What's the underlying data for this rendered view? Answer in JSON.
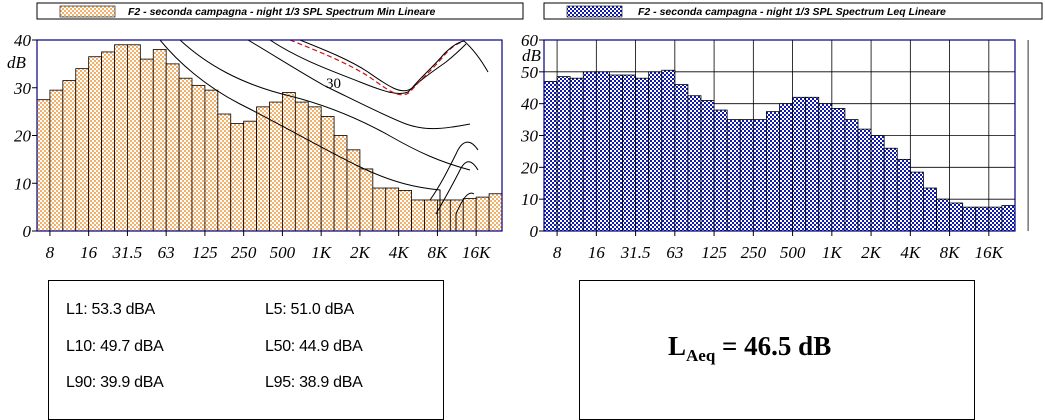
{
  "colors": {
    "left_bar_fill": "#f2b06a",
    "left_bar_pattern": "#ffffff",
    "right_bar_fill": "#0f1ab0",
    "right_bar_pattern": "#ffffff",
    "frame": "#000080",
    "contour": "#000000",
    "contour_dashed": "#d01010"
  },
  "chart_data": [
    {
      "type": "bar",
      "legend": "F2 - seconda campagna - night 1/3 SPL Spectrum Min Lineare",
      "unit_label": "dB",
      "ylim": [
        0,
        40
      ],
      "yticks": [
        "0",
        "10",
        "20",
        "30",
        "40"
      ],
      "xtick_labels": [
        "8",
        "16",
        "31.5",
        "63",
        "125",
        "250",
        "500",
        "1K",
        "2K",
        "4K",
        "8K",
        "16K"
      ],
      "grid": false,
      "values": [
        27.5,
        29.5,
        31.5,
        34,
        36.5,
        37.5,
        39,
        39,
        36,
        38,
        35,
        32,
        30.5,
        29.5,
        24.5,
        22.5,
        23,
        26,
        27,
        29,
        27,
        26,
        24,
        20,
        17,
        13,
        9,
        9,
        8.5,
        6.5,
        6.5,
        6.5,
        6.5,
        6.8,
        7.1,
        7.8
      ],
      "contour_label": "30"
    },
    {
      "type": "bar",
      "legend": "F2 - seconda campagna - night 1/3 SPL Spectrum Leq Lineare",
      "unit_label": "dB",
      "ylim": [
        0,
        60
      ],
      "yticks": [
        "0",
        "10",
        "20",
        "30",
        "40",
        "50",
        "60"
      ],
      "xtick_labels": [
        "8",
        "16",
        "31.5",
        "63",
        "125",
        "250",
        "500",
        "1K",
        "2K",
        "4K",
        "8K",
        "16K"
      ],
      "grid": true,
      "values": [
        47,
        48.5,
        48,
        50,
        50,
        49,
        49,
        48,
        50,
        50.5,
        46,
        42.5,
        41,
        38,
        35,
        35,
        35,
        37.5,
        40,
        42,
        42,
        40,
        38.5,
        35,
        32,
        30,
        26,
        22.5,
        18.5,
        13.5,
        10,
        8.8,
        7.5,
        7.5,
        7.5,
        8
      ]
    }
  ],
  "stats": {
    "l1": "L1: 53.3 dBA",
    "l5": "L5: 51.0 dBA",
    "l10": "L10: 49.7 dBA",
    "l50": "L50: 44.9 dBA",
    "l90": "L90: 39.9 dBA",
    "l95": "L95: 38.9 dBA"
  },
  "laeq": {
    "symbol": "L",
    "subscript": "Aeq",
    "value": "= 46.5 dB"
  }
}
